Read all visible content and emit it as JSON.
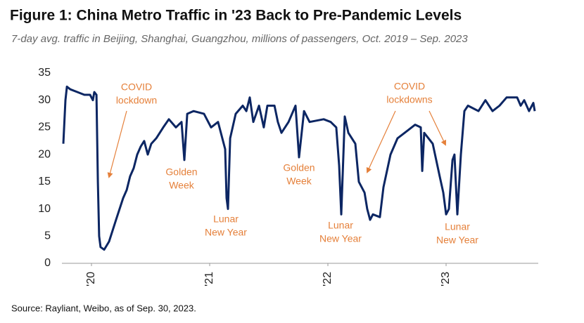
{
  "chart_data": {
    "type": "line",
    "title": "Figure 1: China Metro Traffic in '23 Back to Pre-Pandemic Levels",
    "subtitle": "7-day avg. traffic in Beijing, Shanghai, Guangzhou, millions of passengers, Oct. 2019 – Sep. 2023",
    "source": "Source: Rayliant, Weibo, as of Sep. 30, 2023.",
    "color": "#0c2663",
    "annotation_color": "#e5803a",
    "x": [
      2019.762,
      2019.78,
      2019.792,
      2019.821,
      2019.881,
      2019.94,
      2019.988,
      2020.012,
      2020.024,
      2020.042,
      2020.054,
      2020.065,
      2020.077,
      2020.107,
      2020.149,
      2020.208,
      2020.268,
      2020.298,
      2020.327,
      2020.357,
      2020.387,
      2020.417,
      2020.446,
      2020.476,
      2020.506,
      2020.548,
      2020.607,
      2020.655,
      2020.714,
      2020.762,
      2020.786,
      2020.81,
      2020.863,
      2020.952,
      2021.012,
      2021.071,
      2021.131,
      2021.143,
      2021.155,
      2021.173,
      2021.22,
      2021.28,
      2021.31,
      2021.339,
      2021.369,
      2021.417,
      2021.458,
      2021.488,
      2021.548,
      2021.577,
      2021.607,
      2021.667,
      2021.726,
      2021.756,
      2021.798,
      2021.845,
      2021.964,
      2022.024,
      2022.071,
      2022.095,
      2022.113,
      2022.143,
      2022.173,
      2022.232,
      2022.262,
      2022.31,
      2022.333,
      2022.357,
      2022.381,
      2022.44,
      2022.47,
      2022.53,
      2022.589,
      2022.679,
      2022.738,
      2022.786,
      2022.798,
      2022.815,
      2022.887,
      2022.946,
      2022.976,
      2023.0,
      2023.024,
      2023.054,
      2023.071,
      2023.095,
      2023.125,
      2023.155,
      2023.185,
      2023.274,
      2023.333,
      2023.393,
      2023.452,
      2023.512,
      2023.601,
      2023.631,
      2023.661,
      2023.702,
      2023.738,
      2023.75
    ],
    "values": [
      22,
      30,
      32.5,
      32,
      31.5,
      31,
      31,
      30,
      31.5,
      31,
      15,
      5,
      3,
      2.5,
      4,
      8,
      12,
      13.5,
      16,
      17.5,
      20,
      21.5,
      22.5,
      20,
      22,
      23,
      25,
      26.5,
      25,
      26,
      19,
      27.5,
      28,
      27.5,
      25,
      26,
      21,
      12,
      10,
      23,
      27.5,
      29,
      28,
      30.5,
      26,
      29,
      25,
      29,
      29,
      26,
      24,
      26,
      29,
      19.5,
      28,
      26,
      26.5,
      26,
      25,
      18,
      9,
      27,
      24,
      22,
      15,
      13,
      10,
      8,
      9,
      8.5,
      14,
      20,
      23,
      24.5,
      25.5,
      25,
      17,
      24,
      22,
      16,
      13,
      9,
      10,
      19,
      20,
      9,
      20,
      28,
      29,
      28,
      30,
      28,
      29,
      30.5,
      30.5,
      29,
      30,
      28,
      29.5,
      28
    ],
    "xlim": [
      2019.75,
      2023.75
    ],
    "xticks": [
      {
        "value": 2020,
        "label": "'20"
      },
      {
        "value": 2021,
        "label": "'21"
      },
      {
        "value": 2022,
        "label": "'22"
      },
      {
        "value": 2023,
        "label": "'23"
      }
    ],
    "ylim": [
      0,
      35
    ],
    "yticks": [
      0,
      5,
      10,
      15,
      20,
      25,
      30,
      35
    ],
    "grid": false,
    "annotations": [
      {
        "lines": [
          "COVID",
          "lockdown"
        ]
      },
      {
        "lines": [
          "Golden",
          "Week"
        ]
      },
      {
        "lines": [
          "Lunar",
          "New Year"
        ]
      },
      {
        "lines": [
          "Golden",
          "Week"
        ]
      },
      {
        "lines": [
          "Lunar",
          "New Year"
        ]
      },
      {
        "lines": [
          "COVID",
          "lockdowns"
        ]
      },
      {
        "lines": [
          "Lunar",
          "New Year"
        ]
      }
    ]
  }
}
